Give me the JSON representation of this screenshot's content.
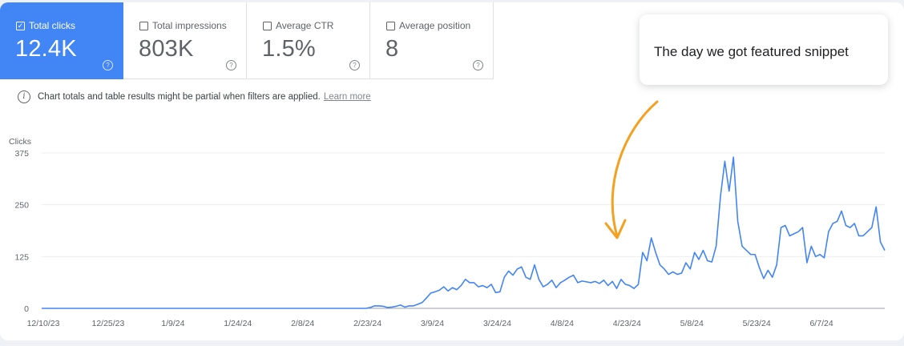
{
  "metrics": [
    {
      "label": "Total clicks",
      "value": "12.4K",
      "checked": true
    },
    {
      "label": "Total impressions",
      "value": "803K",
      "checked": false
    },
    {
      "label": "Average CTR",
      "value": "1.5%",
      "checked": false
    },
    {
      "label": "Average position",
      "value": "8",
      "checked": false
    }
  ],
  "notice": {
    "text": "Chart totals and table results might be partial when filters are applied.",
    "link": "Learn more"
  },
  "annotation": {
    "text": "The day we got featured snippet",
    "arrow_color": "#f4a020",
    "points_to": "4/14/24"
  },
  "colors": {
    "clicks_line": "#4285f4",
    "active_metric": "#4285f4"
  },
  "chart_data": {
    "type": "line",
    "title": "",
    "ylabel": "Clicks",
    "xlabel": "",
    "ylim": [
      0,
      375
    ],
    "yticks": [
      0,
      125,
      250,
      375
    ],
    "x_tick_labels": [
      "12/10/23",
      "12/25/23",
      "1/9/24",
      "1/24/24",
      "2/8/24",
      "2/23/24",
      "3/9/24",
      "3/24/24",
      "4/8/24",
      "4/23/24",
      "5/8/24",
      "5/23/24",
      "6/7/24"
    ],
    "grid": true,
    "series": [
      {
        "name": "Clicks",
        "start_date": "12/10/23",
        "values": [
          0,
          0,
          0,
          0,
          0,
          0,
          0,
          0,
          0,
          0,
          0,
          0,
          0,
          0,
          0,
          0,
          0,
          0,
          0,
          0,
          0,
          0,
          0,
          0,
          0,
          0,
          0,
          0,
          0,
          0,
          0,
          0,
          0,
          0,
          0,
          0,
          0,
          0,
          0,
          0,
          0,
          0,
          0,
          0,
          0,
          0,
          0,
          0,
          0,
          0,
          0,
          0,
          0,
          0,
          0,
          0,
          0,
          0,
          0,
          0,
          0,
          0,
          0,
          0,
          0,
          0,
          0,
          0,
          0,
          0,
          0,
          0,
          0,
          0,
          0,
          0,
          2,
          6,
          6,
          5,
          2,
          3,
          5,
          8,
          3,
          6,
          6,
          10,
          14,
          25,
          37,
          40,
          44,
          52,
          42,
          50,
          45,
          55,
          70,
          62,
          62,
          52,
          55,
          50,
          58,
          38,
          40,
          75,
          90,
          80,
          95,
          100,
          75,
          70,
          105,
          70,
          52,
          58,
          68,
          50,
          62,
          68,
          75,
          80,
          62,
          66,
          64,
          62,
          65,
          60,
          68,
          55,
          65,
          48,
          70,
          58,
          55,
          48,
          58,
          135,
          115,
          170,
          135,
          105,
          95,
          82,
          88,
          82,
          85,
          110,
          95,
          135,
          118,
          140,
          115,
          112,
          150,
          270,
          355,
          283,
          365,
          210,
          150,
          140,
          130,
          130,
          98,
          72,
          92,
          75,
          105,
          195,
          200,
          175,
          180,
          185,
          195,
          110,
          150,
          125,
          130,
          122,
          185,
          205,
          210,
          235,
          200,
          195,
          205,
          175,
          175,
          185,
          195,
          245,
          160,
          140
        ]
      }
    ]
  }
}
